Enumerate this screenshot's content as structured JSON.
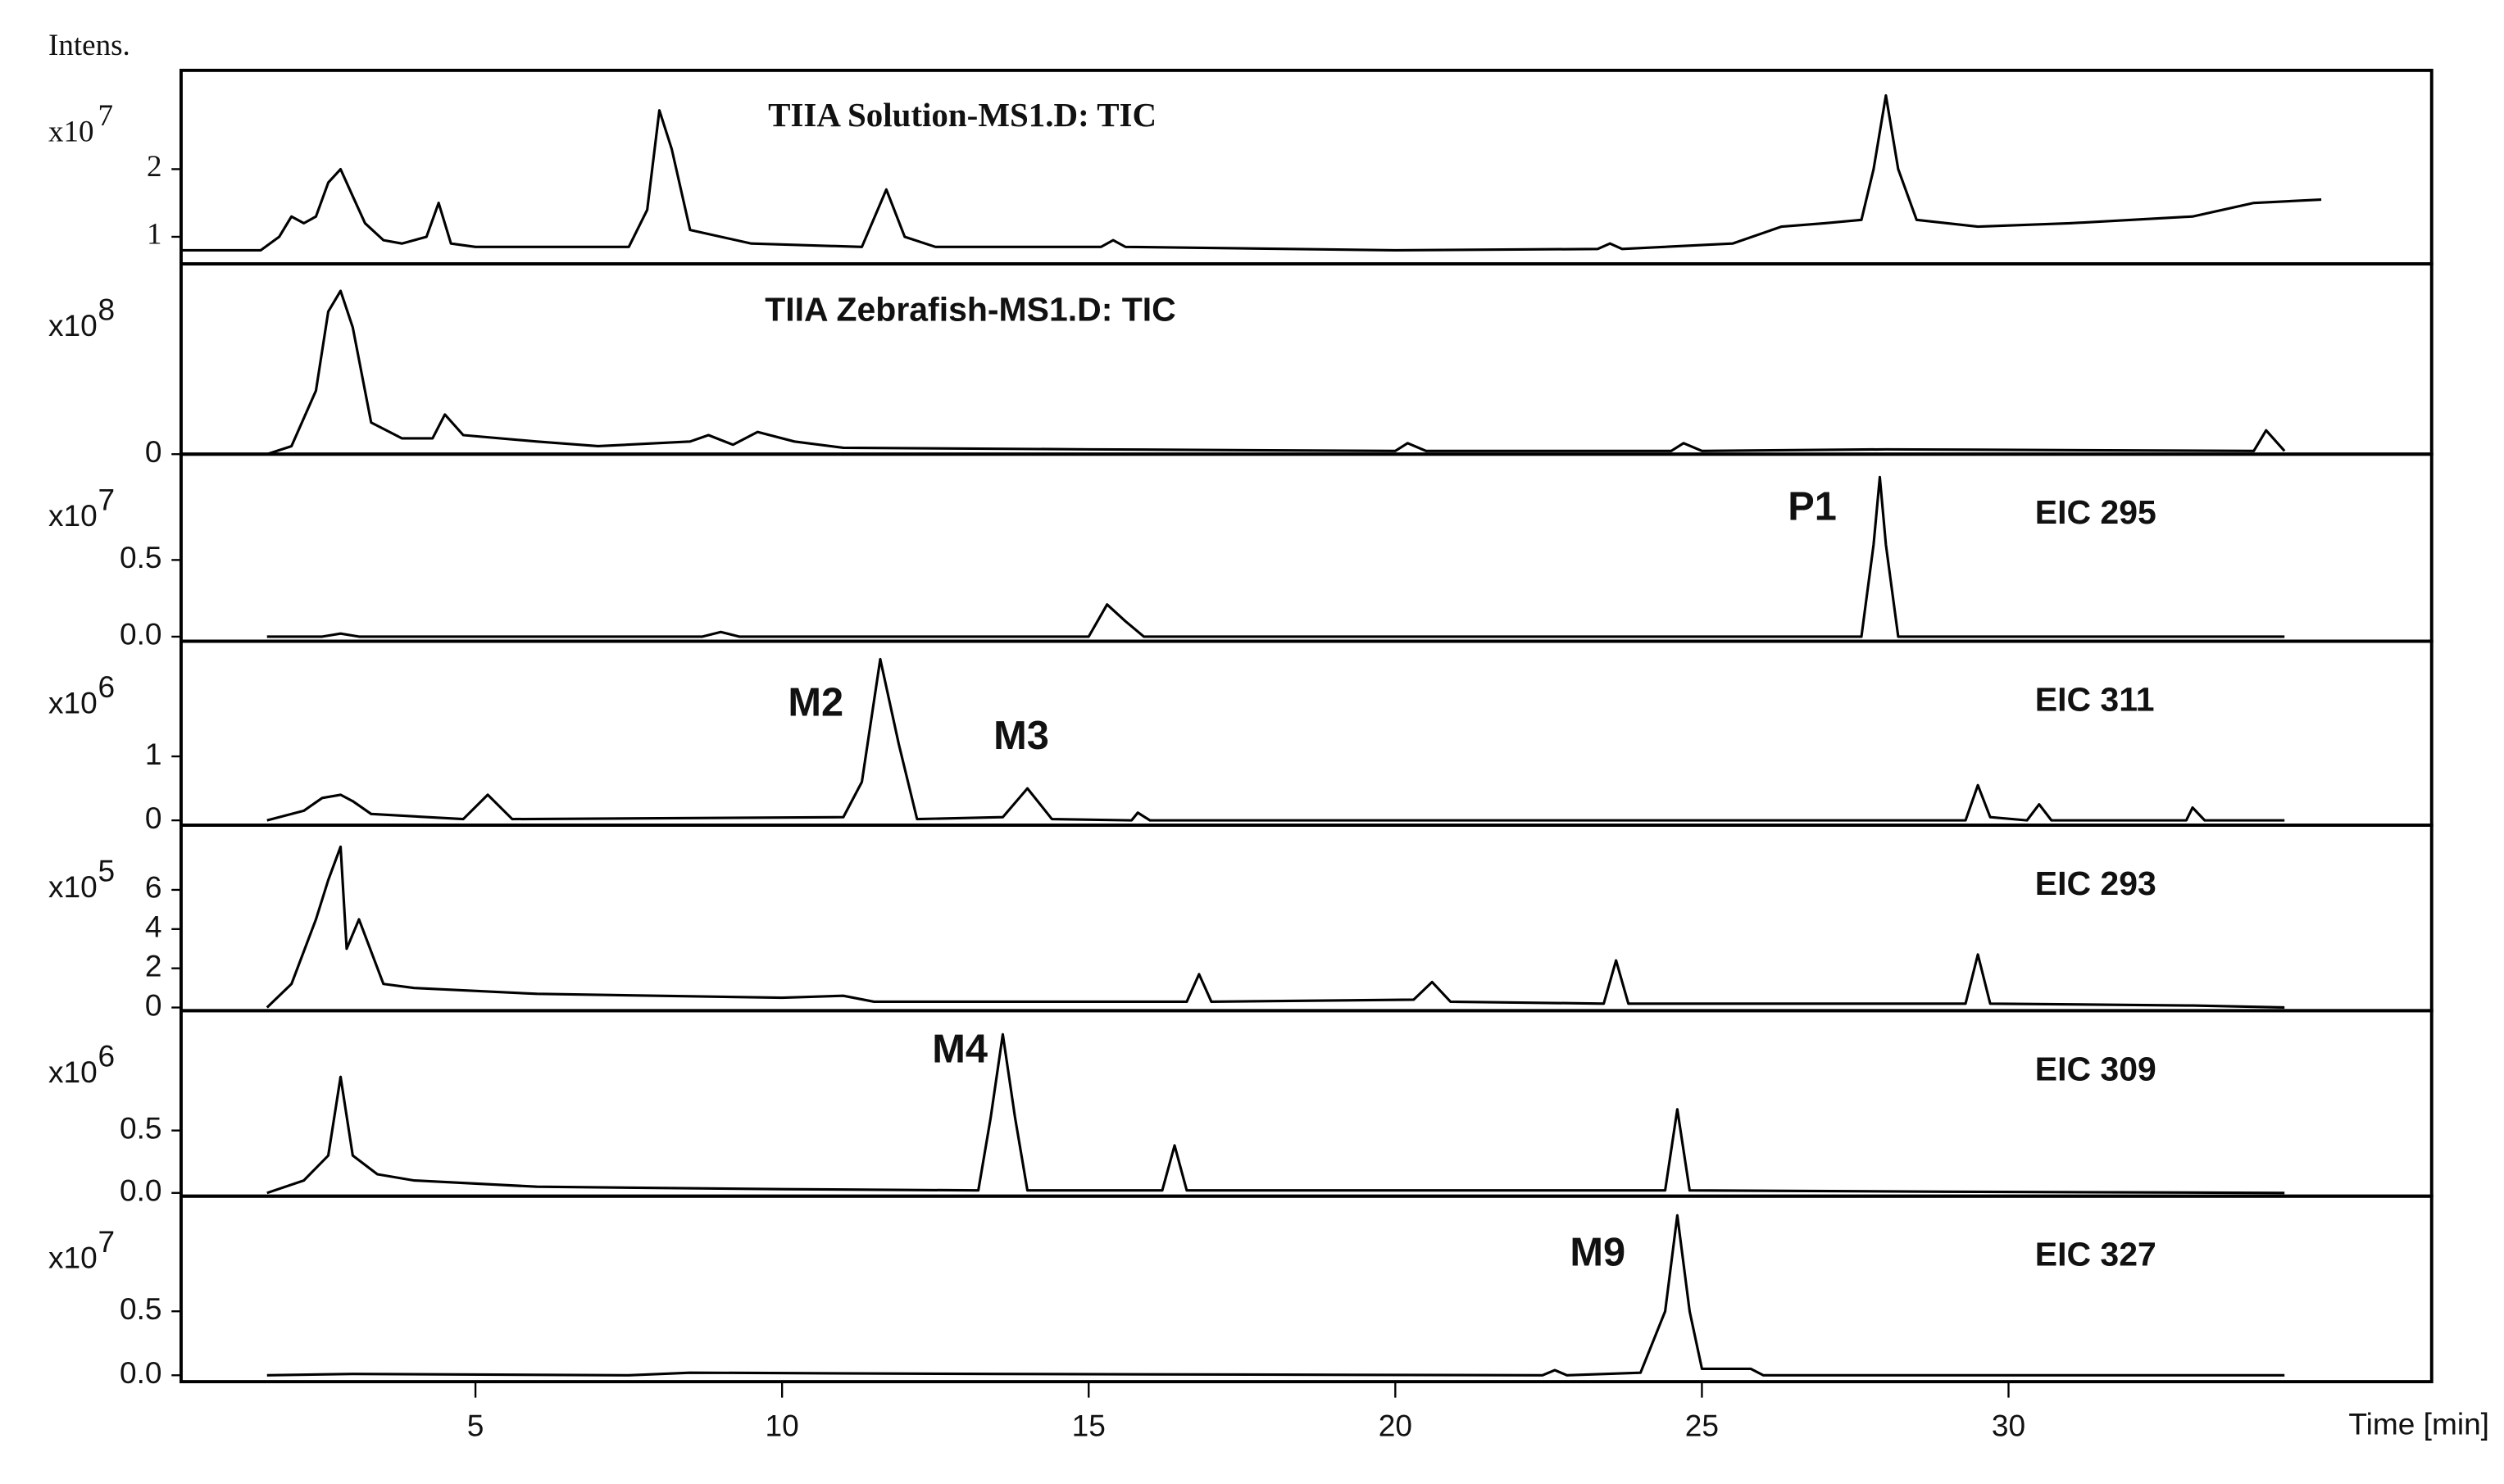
{
  "y_axis_label": "Intens.",
  "shared_x_axis": {
    "label": "Time [min]",
    "xlim": [
      0.2,
      36.9
    ],
    "xticks": [
      5,
      10,
      15,
      20,
      25,
      30
    ]
  },
  "chart_data": [
    {
      "type": "line",
      "title": "TIIA Solution-MS1.D: TIC",
      "scale_label": "x10",
      "scale_exponent": "7",
      "color": "#000000",
      "x": [
        0.2,
        1.5,
        1.8,
        2.0,
        2.2,
        2.4,
        2.6,
        2.8,
        3.0,
        3.2,
        3.5,
        3.8,
        4.2,
        4.4,
        4.6,
        5,
        7.5,
        7.8,
        8.0,
        8.2,
        8.5,
        9.5,
        11.3,
        11.7,
        12.0,
        12.5,
        15.2,
        15.4,
        15.6,
        20,
        23.3,
        23.5,
        23.7,
        25.5,
        26.3,
        27.0,
        27.6,
        27.8,
        28.0,
        28.2,
        28.5,
        29.5,
        31,
        33,
        34,
        35.1
      ],
      "values": [
        0.8,
        0.8,
        1.0,
        1.3,
        1.2,
        1.3,
        1.8,
        2.0,
        1.6,
        1.2,
        0.95,
        0.9,
        1.0,
        1.5,
        0.9,
        0.85,
        0.85,
        1.4,
        2.87,
        2.3,
        1.1,
        0.9,
        0.85,
        1.7,
        1.0,
        0.85,
        0.85,
        0.95,
        0.85,
        0.8,
        0.82,
        0.9,
        0.82,
        0.9,
        1.15,
        1.2,
        1.25,
        2.0,
        3.09,
        2.0,
        1.25,
        1.15,
        1.2,
        1.3,
        1.5,
        1.55
      ],
      "ylim": [
        0.6,
        3.46
      ],
      "yticks": [
        1,
        2
      ],
      "annotations": []
    },
    {
      "type": "line",
      "title": "TIIA Zebrafish-MS1.D: TIC",
      "scale_label": "x10",
      "scale_exponent": "8",
      "color": "#000000",
      "x": [
        1.6,
        2.0,
        2.4,
        2.6,
        2.8,
        3.0,
        3.3,
        3.8,
        4.3,
        4.5,
        4.8,
        6,
        7,
        8.5,
        8.8,
        9.2,
        9.6,
        10.2,
        11,
        15,
        20,
        20.2,
        20.5,
        24.5,
        24.7,
        25,
        28,
        34.0,
        34.2,
        34.5
      ],
      "values": [
        0,
        0.05,
        0.4,
        0.9,
        1.03,
        0.8,
        0.2,
        0.1,
        0.1,
        0.25,
        0.12,
        0.08,
        0.05,
        0.08,
        0.12,
        0.06,
        0.14,
        0.08,
        0.04,
        0.03,
        0.02,
        0.07,
        0.02,
        0.02,
        0.07,
        0.02,
        0.03,
        0.02,
        0.15,
        0.02
      ],
      "ylim": [
        0,
        1.2
      ],
      "yticks": [
        0
      ],
      "annotations": []
    },
    {
      "type": "line",
      "title": "EIC 295",
      "scale_label": "x10",
      "scale_exponent": "7",
      "color": "#000000",
      "x": [
        1.6,
        2.5,
        2.8,
        3.1,
        8.7,
        9.0,
        9.3,
        15.0,
        15.3,
        15.6,
        15.9,
        27.6,
        27.8,
        27.9,
        28.0,
        28.2,
        28.5,
        34.5
      ],
      "values": [
        0,
        0,
        0.02,
        0,
        0,
        0.03,
        0,
        0,
        0.21,
        0.1,
        0,
        0,
        0.6,
        1.04,
        0.6,
        0,
        0,
        0
      ],
      "ylim": [
        -0.03,
        1.19
      ],
      "yticks": [
        {
          "value": 0,
          "label": "0.0"
        },
        0.5
      ],
      "annotations": [
        {
          "text": "P1",
          "x": 26.8,
          "y": 0.83
        }
      ]
    },
    {
      "type": "line",
      "title": "EIC 311",
      "scale_label": "x10",
      "scale_exponent": "6",
      "color": "#000000",
      "x": [
        1.6,
        2.2,
        2.5,
        2.8,
        3.0,
        3.3,
        4.8,
        5.2,
        5.6,
        11.0,
        11.3,
        11.6,
        11.9,
        12.2,
        13.6,
        14.0,
        14.4,
        15.7,
        15.8,
        16.0,
        29.3,
        29.5,
        29.7,
        30.3,
        30.5,
        30.7,
        32.9,
        33.0,
        33.2,
        34.5
      ],
      "values": [
        0,
        0.15,
        0.35,
        0.4,
        0.3,
        0.1,
        0.02,
        0.4,
        0.02,
        0.05,
        0.6,
        2.52,
        1.2,
        0.02,
        0.05,
        0.5,
        0.02,
        0,
        0.12,
        0,
        0,
        0.55,
        0.05,
        0,
        0.25,
        0,
        0,
        0.2,
        0,
        0
      ],
      "ylim": [
        -0.075,
        2.8
      ],
      "yticks": [
        0,
        1
      ],
      "annotations": [
        {
          "text": "M2",
          "x": 10.55,
          "y": 1.8
        },
        {
          "text": "M3",
          "x": 13.9,
          "y": 1.28
        }
      ]
    },
    {
      "type": "line",
      "title": "EIC 293",
      "scale_label": "x10",
      "scale_exponent": "5",
      "color": "#000000",
      "x": [
        1.6,
        2.0,
        2.4,
        2.6,
        2.8,
        2.9,
        3.1,
        3.5,
        4,
        6,
        10,
        11,
        11.5,
        16.6,
        16.8,
        17.0,
        20.3,
        20.6,
        20.9,
        23.4,
        23.6,
        23.8,
        26,
        29.3,
        29.5,
        29.7,
        33,
        34.5
      ],
      "values": [
        0,
        1.2,
        4.5,
        6.5,
        8.2,
        3,
        4.5,
        1.2,
        1,
        0.7,
        0.5,
        0.6,
        0.3,
        0.3,
        1.7,
        0.3,
        0.4,
        1.3,
        0.3,
        0.2,
        2.4,
        0.2,
        0.2,
        0.2,
        2.7,
        0.2,
        0.1,
        0
      ],
      "ylim": [
        -0.16,
        9.3
      ],
      "yticks": [
        0,
        2,
        4,
        6
      ],
      "annotations": []
    },
    {
      "type": "line",
      "title": "EIC 309",
      "scale_label": "x10",
      "scale_exponent": "6",
      "color": "#000000",
      "x": [
        1.6,
        2.2,
        2.6,
        2.8,
        3.0,
        3.4,
        4,
        6,
        10,
        13.2,
        13.4,
        13.6,
        13.8,
        14.0,
        16.2,
        16.4,
        16.6,
        24.4,
        24.6,
        24.8,
        29,
        34.5
      ],
      "values": [
        0,
        0.1,
        0.3,
        0.93,
        0.3,
        0.15,
        0.1,
        0.05,
        0.03,
        0.02,
        0.6,
        1.27,
        0.6,
        0.02,
        0.02,
        0.38,
        0.02,
        0.02,
        0.67,
        0.02,
        0.01,
        0
      ],
      "ylim": [
        -0.026,
        1.46
      ],
      "yticks": [
        {
          "value": 0,
          "label": "0.0"
        },
        0.5
      ],
      "annotations": [
        {
          "text": "M4",
          "x": 12.9,
          "y": 1.13
        }
      ]
    },
    {
      "type": "line",
      "title": "EIC 327",
      "scale_label": "x10",
      "scale_exponent": "7",
      "color": "#000000",
      "x": [
        1.6,
        3,
        7.5,
        8.5,
        13.5,
        22.4,
        22.6,
        22.8,
        24.0,
        24.4,
        24.6,
        24.8,
        25.0,
        25.8,
        26.0,
        28,
        34.5
      ],
      "values": [
        0,
        0.01,
        0,
        0.02,
        0.01,
        0,
        0.04,
        0,
        0.02,
        0.5,
        1.25,
        0.5,
        0.05,
        0.05,
        0,
        0,
        0
      ],
      "ylim": [
        -0.05,
        1.4
      ],
      "yticks": [
        {
          "value": 0,
          "label": "0.0"
        },
        0.5
      ],
      "annotations": [
        {
          "text": "M9",
          "x": 23.3,
          "y": 0.94
        }
      ]
    }
  ]
}
